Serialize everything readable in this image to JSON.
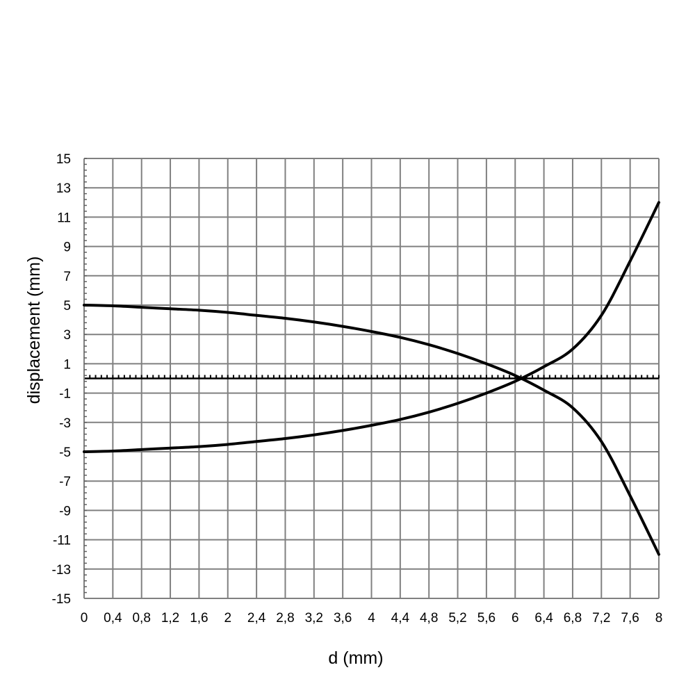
{
  "chart_data": {
    "type": "line",
    "title": "",
    "xlabel": "d (mm)",
    "ylabel": "displacement (mm)",
    "xlim": [
      0,
      8
    ],
    "ylim": [
      -15,
      15
    ],
    "grid": true,
    "legend": "none",
    "x_ticks": [
      "0",
      "0,4",
      "0,8",
      "1,2",
      "1,6",
      "2",
      "2,4",
      "2,8",
      "3,2",
      "3,6",
      "4",
      "4,4",
      "4,8",
      "5,2",
      "5,6",
      "6",
      "6,4",
      "6,8",
      "7,2",
      "7,6",
      "8"
    ],
    "y_ticks": [
      "15",
      "13",
      "11",
      "9",
      "7",
      "5",
      "3",
      "1",
      "-1",
      "-3",
      "-5",
      "-7",
      "-9",
      "-11",
      "-13",
      "-15"
    ],
    "series": [
      {
        "color": "#000000",
        "x": [
          0,
          0.4,
          0.8,
          1.2,
          1.6,
          2.0,
          2.4,
          2.8,
          3.2,
          3.6,
          4.0,
          4.4,
          4.8,
          5.2,
          5.6,
          6.0,
          6.4,
          6.8,
          7.2,
          7.6,
          8.0
        ],
        "y": [
          5.0,
          4.95,
          4.85,
          4.75,
          4.65,
          4.5,
          4.3,
          4.1,
          3.85,
          3.55,
          3.2,
          2.8,
          2.3,
          1.7,
          1.0,
          0.2,
          -0.8,
          -2.0,
          -4.3,
          -8.0,
          -12.0
        ]
      },
      {
        "color": "#000000",
        "x": [
          0,
          0.4,
          0.8,
          1.2,
          1.6,
          2.0,
          2.4,
          2.8,
          3.2,
          3.6,
          4.0,
          4.4,
          4.8,
          5.2,
          5.6,
          6.0,
          6.4,
          6.8,
          7.2,
          7.6,
          8.0
        ],
        "y": [
          -5.0,
          -4.95,
          -4.85,
          -4.75,
          -4.65,
          -4.5,
          -4.3,
          -4.1,
          -3.85,
          -3.55,
          -3.2,
          -2.8,
          -2.3,
          -1.7,
          -1.0,
          -0.2,
          0.8,
          2.0,
          4.3,
          8.0,
          12.0
        ]
      }
    ],
    "baseline": {
      "y": 0,
      "style": "solid-with-minor-ticks",
      "color": "#000000"
    }
  }
}
